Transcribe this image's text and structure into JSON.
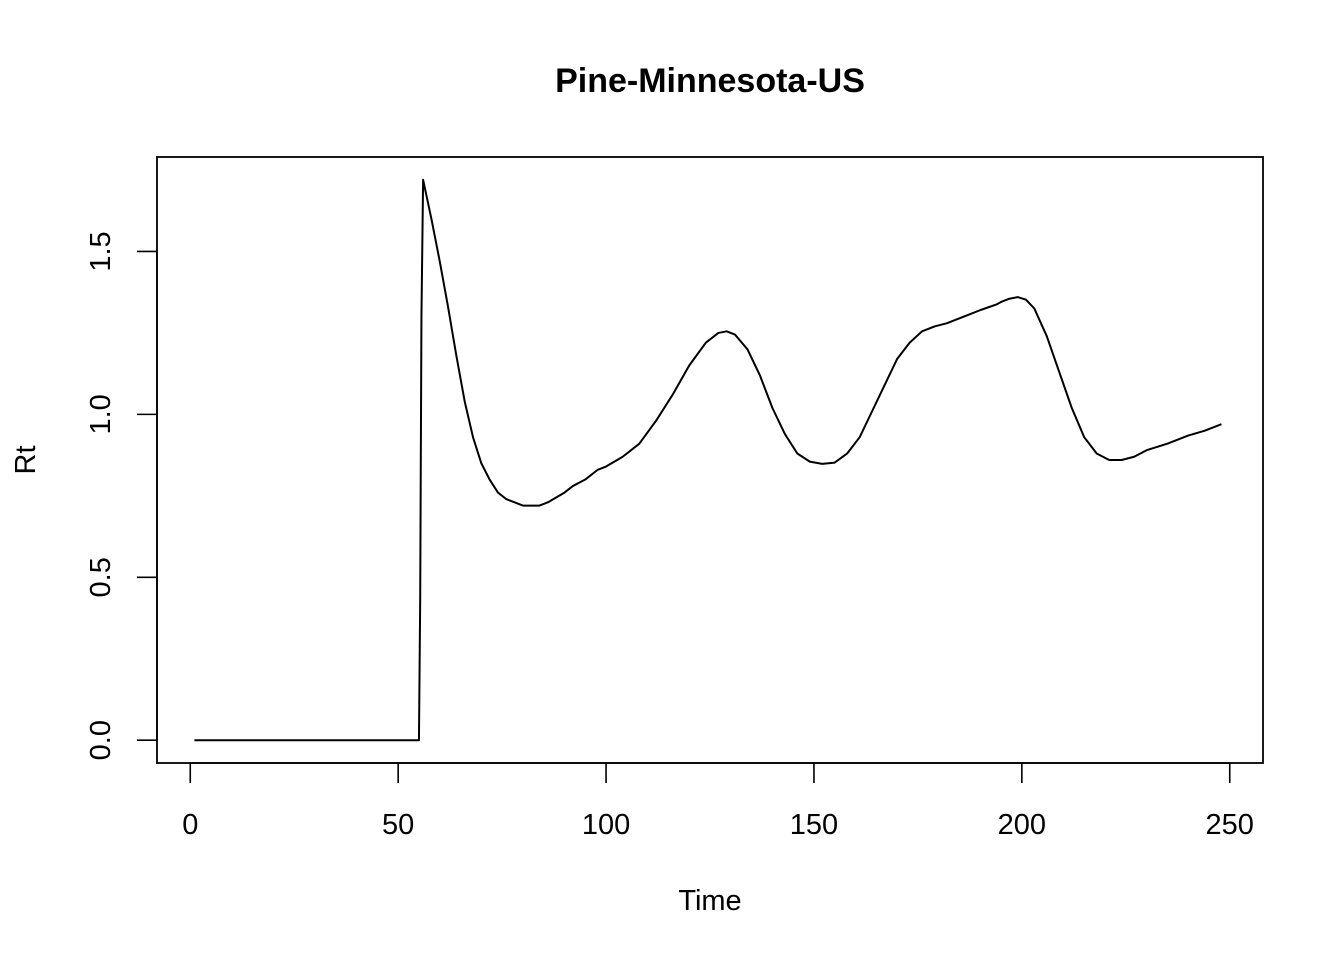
{
  "chart_data": {
    "type": "line",
    "title": "Pine-Minnesota-US",
    "xlabel": "Time",
    "ylabel": "Rt",
    "xlim": [
      -8,
      258
    ],
    "ylim": [
      -0.07,
      1.79
    ],
    "xticks": [
      0,
      50,
      100,
      150,
      200,
      250
    ],
    "yticks": [
      0.0,
      0.5,
      1.0,
      1.5
    ],
    "xtick_labels": [
      "0",
      "50",
      "100",
      "150",
      "200",
      "250"
    ],
    "ytick_labels": [
      "0.0",
      "0.5",
      "1.0",
      "1.5"
    ],
    "grid": false,
    "legend": "none",
    "series": [
      {
        "color": "#000000",
        "x": [
          1,
          10,
          20,
          30,
          40,
          50,
          55,
          55.3,
          55.6,
          56,
          58,
          60,
          62,
          64,
          66,
          68,
          70,
          72,
          74,
          76,
          78,
          80,
          82,
          84,
          86,
          88,
          90,
          92,
          95,
          98,
          100,
          104,
          108,
          112,
          116,
          120,
          124,
          127,
          129,
          131,
          134,
          137,
          140,
          143,
          146,
          149,
          152,
          155,
          158,
          161,
          164,
          167,
          170,
          173,
          176,
          179,
          182,
          186,
          190,
          194,
          195,
          197,
          199,
          201,
          203,
          206,
          209,
          212,
          215,
          218,
          221,
          224,
          227,
          230,
          235,
          240,
          244,
          248
        ],
        "y": [
          0.0,
          0.0,
          0.0,
          0.0,
          0.0,
          0.0,
          0.0,
          0.43,
          1.3,
          1.72,
          1.6,
          1.47,
          1.33,
          1.18,
          1.04,
          0.93,
          0.85,
          0.8,
          0.76,
          0.74,
          0.73,
          0.72,
          0.72,
          0.72,
          0.73,
          0.745,
          0.76,
          0.78,
          0.8,
          0.83,
          0.84,
          0.87,
          0.91,
          0.98,
          1.06,
          1.15,
          1.22,
          1.25,
          1.255,
          1.245,
          1.2,
          1.12,
          1.02,
          0.94,
          0.88,
          0.855,
          0.848,
          0.852,
          0.88,
          0.93,
          1.01,
          1.09,
          1.17,
          1.22,
          1.255,
          1.27,
          1.28,
          1.3,
          1.32,
          1.338,
          1.345,
          1.355,
          1.36,
          1.352,
          1.325,
          1.24,
          1.13,
          1.02,
          0.93,
          0.88,
          0.86,
          0.86,
          0.87,
          0.89,
          0.91,
          0.935,
          0.95,
          0.97
        ]
      }
    ]
  }
}
